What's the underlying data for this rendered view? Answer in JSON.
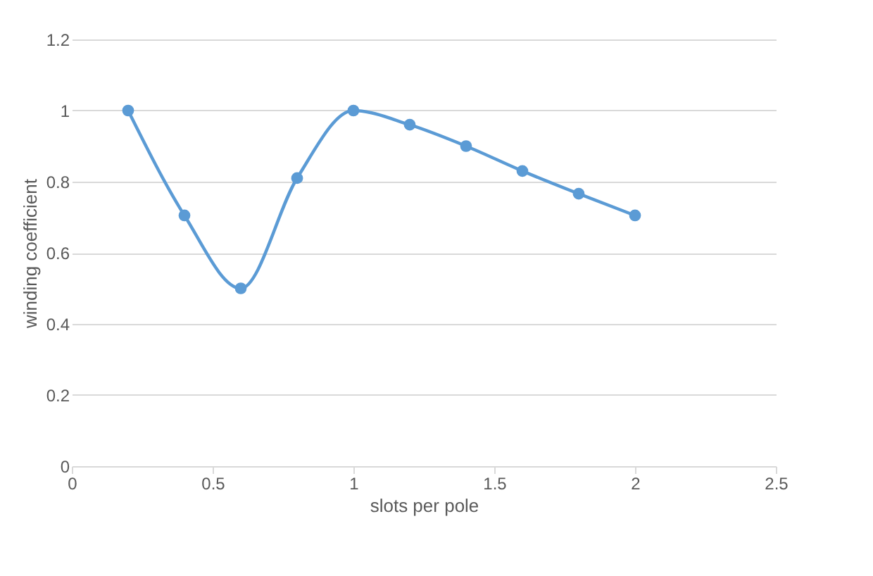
{
  "chart_data": {
    "type": "line",
    "xlabel": "slots per pole",
    "ylabel": "winding coefficient",
    "x": [
      0.2,
      0.4,
      0.6,
      0.8,
      1.0,
      1.2,
      1.4,
      1.6,
      1.8,
      2.0
    ],
    "series": [
      {
        "color": "#5b9bd5",
        "values": [
          1.0,
          0.705,
          0.5,
          0.81,
          1.0,
          0.96,
          0.9,
          0.83,
          0.766,
          0.705
        ]
      }
    ],
    "xlim": [
      0,
      2.5
    ],
    "xticks": [
      0,
      0.5,
      1,
      1.5,
      2,
      2.5
    ],
    "ylim": [
      0,
      1.2
    ],
    "yticks": [
      0,
      0.2,
      0.4,
      0.6,
      0.8,
      1,
      1.2
    ],
    "grid": "y",
    "marker": "circle",
    "line_style": "solid"
  }
}
